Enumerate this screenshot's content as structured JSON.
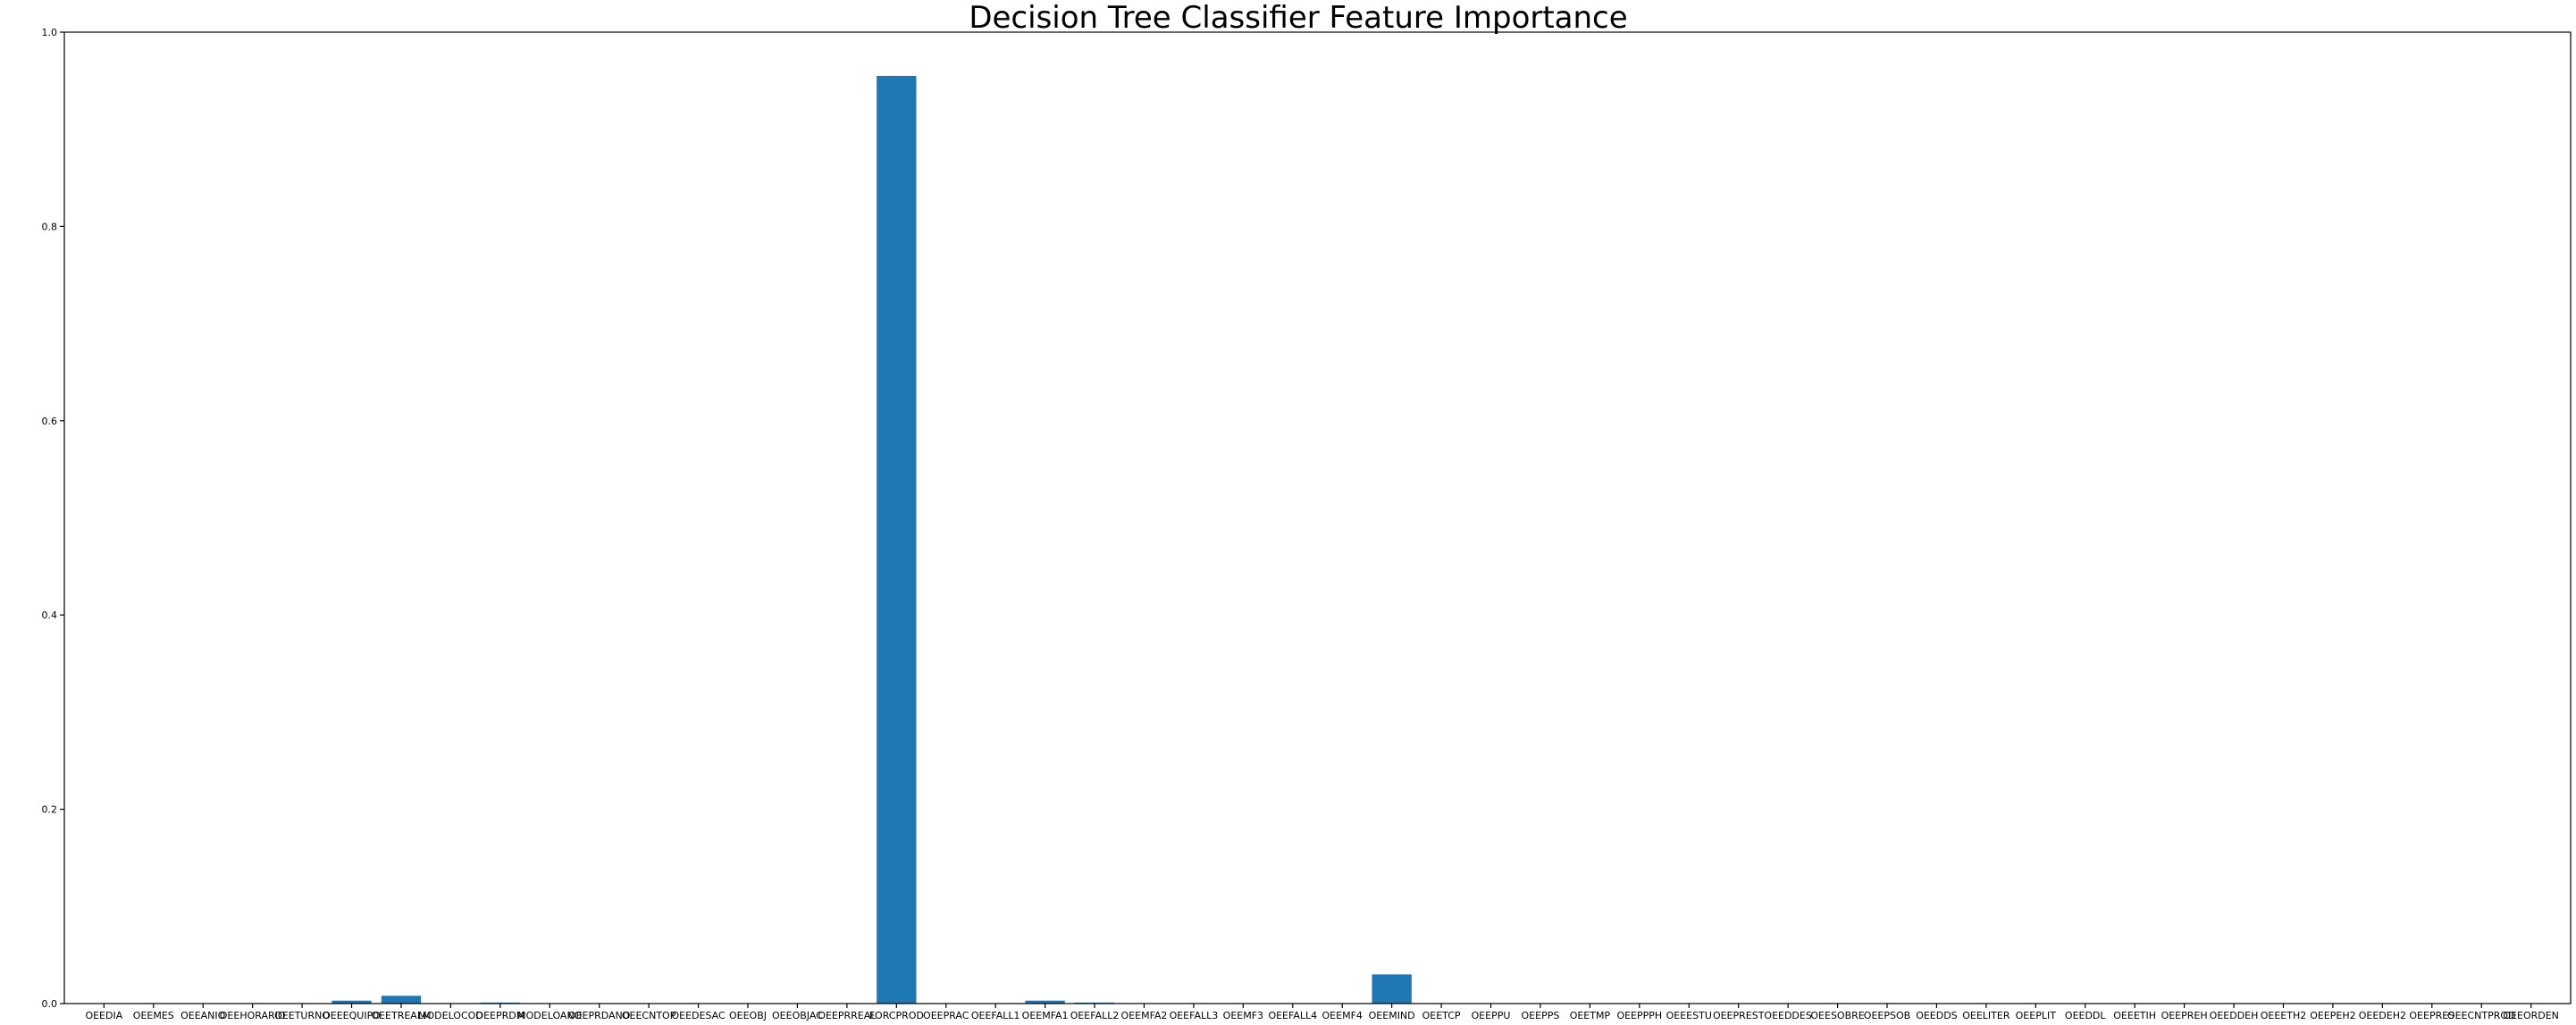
{
  "chart_data": {
    "type": "bar",
    "title": "Decision Tree Classifier Feature Importance",
    "xlabel": "",
    "ylabel": "",
    "ylim": [
      0,
      1.0
    ],
    "yticks": [
      "0.0",
      "0.2",
      "0.4",
      "0.6",
      "0.8",
      "1.0"
    ],
    "grid": false,
    "bar_color": "#1f77b4",
    "categories": [
      "OEEDIA",
      "OEEMES",
      "OEEANIO",
      "OEEHORARIO",
      "OEETURNO",
      "OEEEQUIPO",
      "OEETREALM",
      "MODELOCOD",
      "OEEPRDM",
      "MODELOANO",
      "OEEPRDANO",
      "OEECNTOP",
      "OEEDESAC",
      "OEEOBJ",
      "OEEOBJAC",
      "OEEPRREAL",
      "FORCPROD",
      "OEEPRAC",
      "OEEFALL1",
      "OEEMFA1",
      "OEEFALL2",
      "OEEMFA2",
      "OEEFALL3",
      "OEEMF3",
      "OEEFALL4",
      "OEEMF4",
      "OEEMIND",
      "OEETCP",
      "OEEPPU",
      "OEEPPS",
      "OEETMP",
      "OEEPPPH",
      "OEEESTU",
      "OEEPREST",
      "OEEDDES",
      "OEESOBRE",
      "OEEPSOB",
      "OEEDDS",
      "OEELITER",
      "OEEPLIT",
      "OEEDDL",
      "OEEETIH",
      "OEEPREH",
      "OEEDDEH",
      "OEEETH2",
      "OEEPEH2",
      "OEEDEH2",
      "OEEPRES",
      "OEECNTPROD",
      "OEEORDEN"
    ],
    "values": [
      0,
      0,
      0,
      0,
      0,
      0.003,
      0.008,
      0,
      0.001,
      0,
      0,
      0,
      0,
      0,
      0,
      0,
      0.955,
      0,
      0,
      0.003,
      0.001,
      0,
      0,
      0,
      0,
      0,
      0.03,
      0,
      0,
      0,
      0,
      0,
      0,
      0,
      0,
      0,
      0,
      0,
      0,
      0,
      0,
      0,
      0,
      0,
      0,
      0,
      0,
      0,
      0,
      0
    ]
  }
}
